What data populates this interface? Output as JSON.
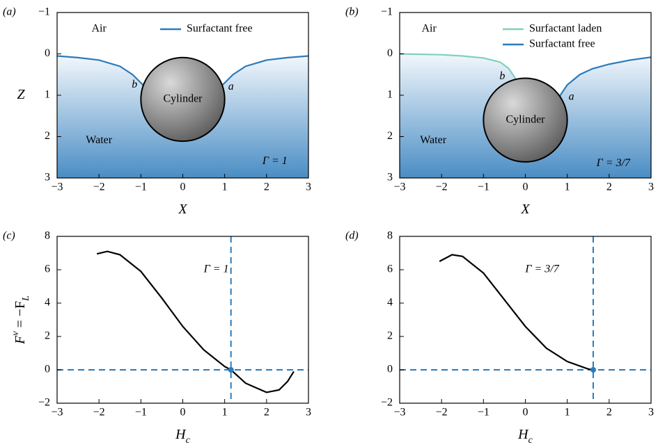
{
  "chart_data": [
    {
      "type": "line",
      "panel_label": "(a)",
      "x_label": [
        "X"
      ],
      "y_label": [
        "Z"
      ],
      "xlim": [
        -3,
        3
      ],
      "xticks": [
        {
          "value": -3,
          "label": "−3"
        },
        {
          "value": -2,
          "label": "−2"
        },
        {
          "value": -1,
          "label": "−1"
        },
        0,
        1,
        2,
        3
      ],
      "ylim": [
        3,
        -1
      ],
      "yticks": [
        {
          "value": -1,
          "label": "−1"
        },
        0,
        1,
        2,
        3
      ],
      "series": [
        {
          "name": "Surfactant free",
          "color": "#2b7bba",
          "x": [
            -3,
            -2.5,
            -2,
            -1.5,
            -1.2,
            -0.95,
            null,
            0.95,
            1.2,
            1.5,
            2,
            2.5,
            3
          ],
          "values": [
            0.05,
            0.09,
            0.15,
            0.3,
            0.5,
            0.75,
            null,
            0.75,
            0.5,
            0.3,
            0.15,
            0.09,
            0.05
          ]
        }
      ],
      "cylinder": {
        "label": "Cylinder",
        "center": [
          0,
          1.1
        ],
        "radius": 1
      },
      "annotations": [
        "Air",
        "Water",
        "a",
        "b",
        "Γ = 1"
      ]
    },
    {
      "type": "line",
      "panel_label": "(b)",
      "x_label": [
        "X"
      ],
      "xlim": [
        -3,
        3
      ],
      "xticks": [
        {
          "value": -3,
          "label": "−3"
        },
        {
          "value": -2,
          "label": "−2"
        },
        {
          "value": -1,
          "label": "−1"
        },
        0,
        1,
        2,
        3
      ],
      "ylim": [
        3,
        -1
      ],
      "yticks": [
        {
          "value": -1,
          "label": "−1"
        },
        0,
        1,
        2,
        3
      ],
      "series": [
        {
          "name": "Surfactant laden",
          "color": "#7fd1bf",
          "x": [
            -3,
            -2.5,
            -2,
            -1.5,
            -1,
            -0.6,
            -0.4,
            -0.2
          ],
          "values": [
            0,
            0.01,
            0.02,
            0.05,
            0.1,
            0.2,
            0.35,
            0.65
          ]
        },
        {
          "name": "Surfactant free",
          "color": "#2b7bba",
          "x": [
            0.8,
            1,
            1.3,
            1.6,
            2,
            2.5,
            3
          ],
          "values": [
            1.05,
            0.75,
            0.5,
            0.36,
            0.25,
            0.15,
            0.08
          ]
        }
      ],
      "cylinder": {
        "label": "Cylinder",
        "center": [
          0,
          1.6
        ],
        "radius": 1
      },
      "annotations": [
        "Air",
        "Water",
        "a",
        "b",
        "Γ = 3/7"
      ]
    },
    {
      "type": "line",
      "panel_label": "(c)",
      "x_label": [
        "H",
        "c"
      ],
      "y_label": [
        "F",
        "v",
        " = −F",
        "L"
      ],
      "xlim": [
        -3,
        3
      ],
      "xticks": [
        {
          "value": -3,
          "label": "−3"
        },
        {
          "value": -2,
          "label": "−2"
        },
        {
          "value": -1,
          "label": "−1"
        },
        0,
        1,
        2,
        3
      ],
      "ylim": [
        -2,
        8
      ],
      "yticks": [
        {
          "value": -2,
          "label": "−2"
        },
        0,
        2,
        4,
        6,
        8
      ],
      "series": [
        {
          "color": "#000000",
          "x": [
            -2.05,
            -1.8,
            -1.5,
            -1,
            -0.5,
            0,
            0.5,
            1,
            1.15,
            1.5,
            2,
            2.3,
            2.5,
            2.65
          ],
          "values": [
            6.95,
            7.1,
            6.9,
            5.9,
            4.3,
            2.6,
            1.2,
            0.2,
            0,
            -0.8,
            -1.35,
            -1.2,
            -0.7,
            -0.1
          ]
        }
      ],
      "crossing": {
        "x": 1.15,
        "y": 0,
        "color": "#2b7bba"
      },
      "annotations": [
        "Γ = 1"
      ]
    },
    {
      "type": "line",
      "panel_label": "(d)",
      "x_label": [
        "H",
        "c"
      ],
      "xlim": [
        -3,
        3
      ],
      "xticks": [
        {
          "value": -3,
          "label": "−3"
        },
        {
          "value": -2,
          "label": "−2"
        },
        {
          "value": -1,
          "label": "−1"
        },
        0,
        1,
        2,
        3
      ],
      "ylim": [
        -2,
        8
      ],
      "yticks": [
        {
          "value": -2,
          "label": "−2"
        },
        0,
        2,
        4,
        6,
        8
      ],
      "series": [
        {
          "color": "#000000",
          "x": [
            -2.05,
            -1.75,
            -1.5,
            -1,
            -0.5,
            0,
            0.5,
            1,
            1.5,
            1.62
          ],
          "values": [
            6.5,
            6.9,
            6.8,
            5.8,
            4.2,
            2.6,
            1.3,
            0.5,
            0.05,
            0
          ]
        }
      ],
      "crossing": {
        "x": 1.62,
        "y": 0,
        "color": "#2b7bba"
      },
      "annotations": [
        "Γ = 3/7"
      ]
    }
  ]
}
